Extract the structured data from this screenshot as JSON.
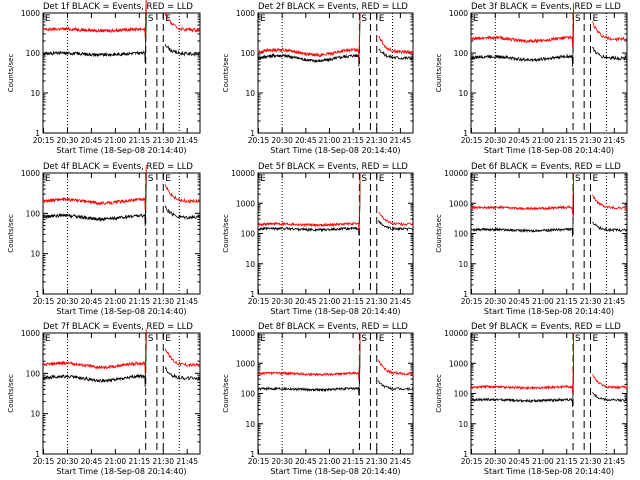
{
  "figure": {
    "xlabel": "Start Time (18-Sep-08 20:14:40)",
    "ylabel": "Counts/sec",
    "x_tick_labels": [
      "20:15",
      "20:30",
      "20:45",
      "21:00",
      "21:15",
      "21:30",
      "21:45"
    ],
    "marker_labels": {
      "start": "E",
      "occult1": "S",
      "occult2": "E"
    }
  },
  "colors": {
    "events": "#000000",
    "lld": "#ff0000",
    "axes": "#000000"
  },
  "chart_data": [
    {
      "type": "line",
      "title": "Det 1f BLACK = Events, RED = LLD",
      "ylim": [
        1,
        1000
      ],
      "y_scale": "log",
      "y_tick_labels": [
        "1",
        "10",
        "100",
        "1000"
      ],
      "series": [
        {
          "name": "Events",
          "color": "#000000",
          "base": 95,
          "bump": 0.05
        },
        {
          "name": "LLD",
          "color": "#ff0000",
          "base": 380,
          "bump": 0.05
        }
      ]
    },
    {
      "type": "line",
      "title": "Det 2f BLACK = Events, RED = LLD",
      "ylim": [
        1,
        1000
      ],
      "y_scale": "log",
      "y_tick_labels": [
        "1",
        "10",
        "100",
        "1000"
      ],
      "series": [
        {
          "name": "Events",
          "color": "#000000",
          "base": 75,
          "bump": 0.15
        },
        {
          "name": "LLD",
          "color": "#ff0000",
          "base": 105,
          "bump": 0.15
        }
      ]
    },
    {
      "type": "line",
      "title": "Det 3f BLACK = Events, RED = LLD",
      "ylim": [
        1,
        1000
      ],
      "y_scale": "log",
      "y_tick_labels": [
        "1",
        "10",
        "100",
        "1000"
      ],
      "series": [
        {
          "name": "Events",
          "color": "#000000",
          "base": 75,
          "bump": 0.1
        },
        {
          "name": "LLD",
          "color": "#ff0000",
          "base": 220,
          "bump": 0.1
        }
      ]
    },
    {
      "type": "line",
      "title": "Det 4f BLACK = Events, RED = LLD",
      "ylim": [
        1,
        1000
      ],
      "y_scale": "log",
      "y_tick_labels": [
        "1",
        "10",
        "100",
        "1000"
      ],
      "series": [
        {
          "name": "Events",
          "color": "#000000",
          "base": 80,
          "bump": 0.1
        },
        {
          "name": "LLD",
          "color": "#ff0000",
          "base": 200,
          "bump": 0.1
        }
      ]
    },
    {
      "type": "line",
      "title": "Det 5f BLACK = Events, RED = LLD",
      "ylim": [
        1,
        10000
      ],
      "y_scale": "log",
      "y_tick_labels": [
        "1",
        "10",
        "100",
        "1000",
        "10000"
      ],
      "series": [
        {
          "name": "Events",
          "color": "#000000",
          "base": 140,
          "bump": 0.05
        },
        {
          "name": "LLD",
          "color": "#ff0000",
          "base": 200,
          "bump": 0.05
        }
      ]
    },
    {
      "type": "line",
      "title": "Det 6f BLACK = Events, RED = LLD",
      "ylim": [
        1,
        10000
      ],
      "y_scale": "log",
      "y_tick_labels": [
        "1",
        "10",
        "100",
        "1000",
        "10000"
      ],
      "series": [
        {
          "name": "Events",
          "color": "#000000",
          "base": 130,
          "bump": 0.05
        },
        {
          "name": "LLD",
          "color": "#ff0000",
          "base": 700,
          "bump": 0.05
        }
      ]
    },
    {
      "type": "line",
      "title": "Det 7f BLACK = Events, RED = LLD",
      "ylim": [
        1,
        1000
      ],
      "y_scale": "log",
      "y_tick_labels": [
        "1",
        "10",
        "100",
        "1000"
      ],
      "series": [
        {
          "name": "Events",
          "color": "#000000",
          "base": 75,
          "bump": 0.12
        },
        {
          "name": "LLD",
          "color": "#ff0000",
          "base": 160,
          "bump": 0.12
        }
      ]
    },
    {
      "type": "line",
      "title": "Det 8f BLACK = Events, RED = LLD",
      "ylim": [
        1,
        10000
      ],
      "y_scale": "log",
      "y_tick_labels": [
        "1",
        "10",
        "100",
        "1000",
        "10000"
      ],
      "series": [
        {
          "name": "Events",
          "color": "#000000",
          "base": 140,
          "bump": 0.05
        },
        {
          "name": "LLD",
          "color": "#ff0000",
          "base": 450,
          "bump": 0.05
        }
      ]
    },
    {
      "type": "line",
      "title": "Det 9f BLACK = Events, RED = LLD",
      "ylim": [
        1,
        10000
      ],
      "y_scale": "log",
      "y_tick_labels": [
        "1",
        "10",
        "100",
        "1000",
        "10000"
      ],
      "series": [
        {
          "name": "Events",
          "color": "#000000",
          "base": 60,
          "bump": 0.05
        },
        {
          "name": "LLD",
          "color": "#ff0000",
          "base": 160,
          "bump": 0.05
        }
      ]
    }
  ]
}
